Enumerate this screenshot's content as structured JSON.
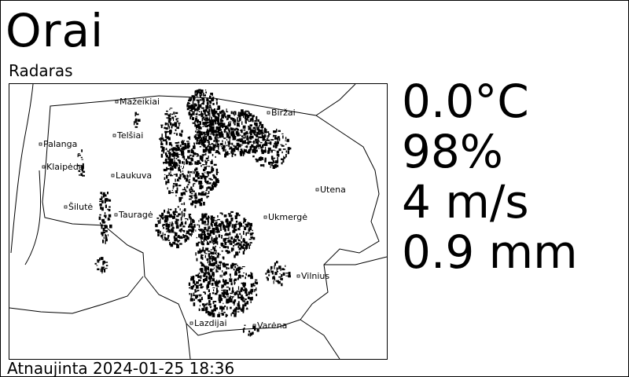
{
  "app": {
    "title": "Orai",
    "subtitle": "Radaras"
  },
  "readings": {
    "temperature": "0.0°C",
    "humidity": "98%",
    "wind": "4 m/s",
    "precipitation": "0.9 mm"
  },
  "footer": {
    "updated_label": "Atnaujinta",
    "updated_time": "2024-01-25 18:36"
  },
  "radar": {
    "cities": [
      "Mažeikiai",
      "Biržai",
      "Telšiai",
      "Palanga",
      "Klaipėda",
      "Laukuva",
      "Utena",
      "Šilutė",
      "Tauragė",
      "Ukmergė",
      "Vilnius",
      "Lazdijai",
      "Varėna"
    ]
  }
}
